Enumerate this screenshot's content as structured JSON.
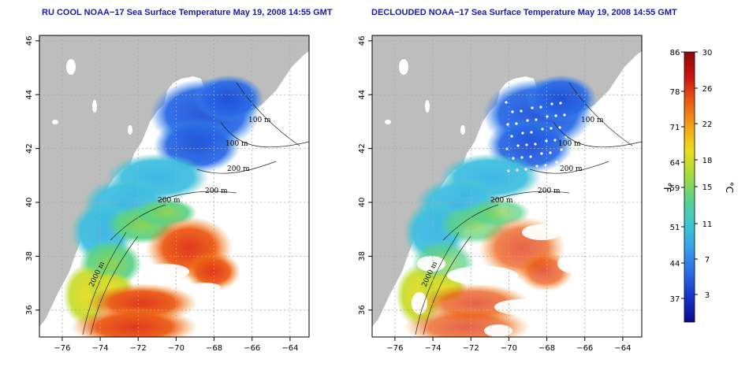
{
  "maps": [
    {
      "id": "left",
      "title": "RU COOL NOAA−17 Sea Surface Temperature May 19, 2008 14:55 GMT",
      "x_ticks": [
        "−76",
        "−74",
        "−72",
        "−70",
        "−68",
        "−66",
        "−64"
      ],
      "y_ticks": [
        "36",
        "38",
        "40",
        "42",
        "44",
        "46"
      ],
      "contour_labels": [
        "100 m",
        "100 m",
        "200 m",
        "200 m",
        "200 m",
        "2000 m"
      ]
    },
    {
      "id": "right",
      "title": "DECLOUDED NOAA−17 Sea Surface Temperature May 19, 2008 14:55 GMT",
      "x_ticks": [
        "−76",
        "−74",
        "−72",
        "−70",
        "−68",
        "−66",
        "−64"
      ],
      "y_ticks": [
        "36",
        "38",
        "40",
        "42",
        "44",
        "46"
      ],
      "contour_labels": [
        "100 m",
        "100 m",
        "200 m",
        "200 m",
        "200 m",
        "2000 m"
      ]
    }
  ],
  "colorbar": {
    "fahrenheit_label": "°F",
    "celsius_label": "°C",
    "fahrenheit_ticks": [
      "86",
      "78",
      "71",
      "64",
      "59",
      "51",
      "44",
      "37"
    ],
    "celsius_ticks": [
      "30",
      "26",
      "22",
      "18",
      "15",
      "11",
      "7",
      "3"
    ],
    "colors": [
      "#0a0a8c",
      "#1433c8",
      "#2a6ae6",
      "#38a0ea",
      "#3cc8d2",
      "#5ad28a",
      "#a6dc3c",
      "#eedc1e",
      "#f4a018",
      "#ec5a14",
      "#c81410",
      "#8c0a0a"
    ]
  },
  "colors": {
    "land": "#bdbdbd",
    "title": "#1a1aa8",
    "grid": "#aaaaaa"
  }
}
